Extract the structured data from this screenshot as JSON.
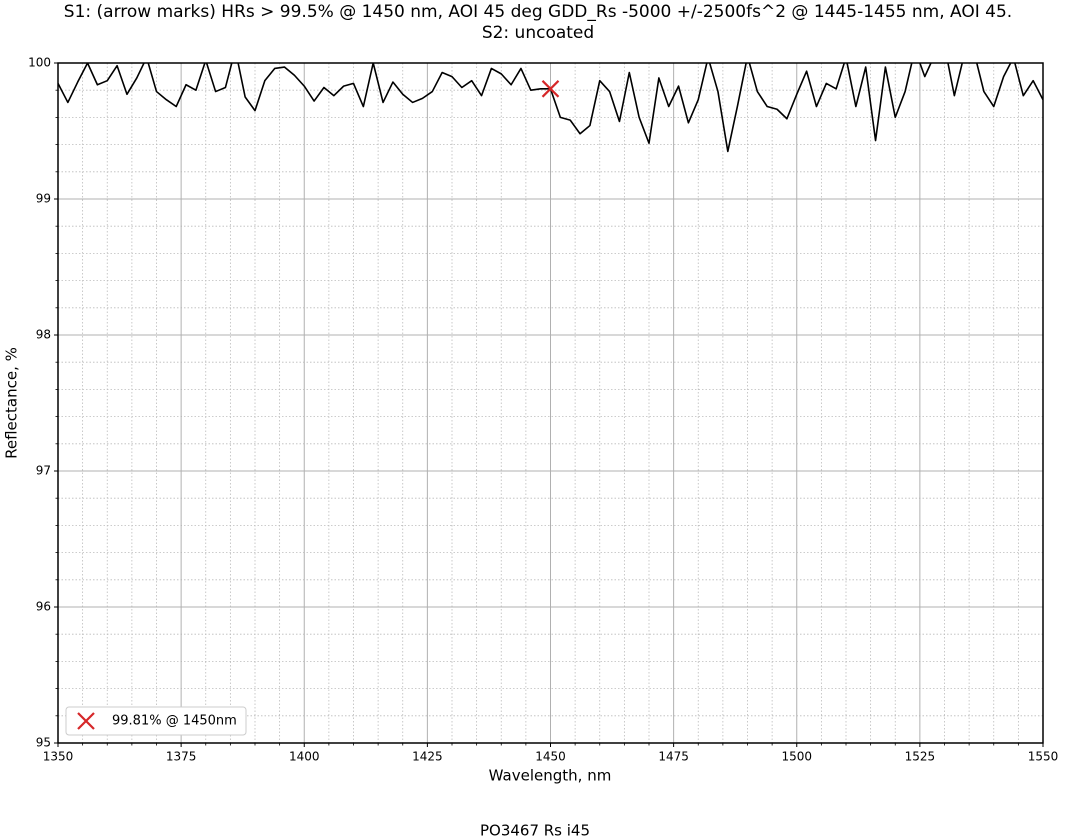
{
  "chart_data": {
    "type": "line",
    "title": "S1: (arrow marks) HRs > 99.5% @ 1450 nm, AOI 45 deg  GDD_Rs -5000 +/-2500fs^2 @ 1445-1455 nm, AOI 45.",
    "subtitle": "S2: uncoated",
    "xlabel": "Wavelength, nm",
    "ylabel": "Reflectance, %",
    "footer": "PO3467 Rs i45",
    "xlim": [
      1350,
      1550
    ],
    "ylim": [
      95,
      100
    ],
    "xticks": [
      1350,
      1375,
      1400,
      1425,
      1450,
      1475,
      1500,
      1525,
      1550
    ],
    "yticks": [
      95,
      96,
      97,
      98,
      99,
      100
    ],
    "xminor": [
      1355,
      1360,
      1365,
      1370,
      1380,
      1385,
      1390,
      1395,
      1405,
      1410,
      1415,
      1420,
      1430,
      1435,
      1440,
      1445,
      1455,
      1460,
      1465,
      1470,
      1480,
      1485,
      1490,
      1495,
      1505,
      1510,
      1515,
      1520,
      1530,
      1535,
      1540,
      1545
    ],
    "yminor": [
      95.2,
      95.4,
      95.6,
      95.8,
      96.2,
      96.4,
      96.6,
      96.8,
      97.2,
      97.4,
      97.6,
      97.8,
      98.2,
      98.4,
      98.6,
      98.8,
      99.2,
      99.4,
      99.6,
      99.8
    ],
    "grid": true,
    "x": [
      1350,
      1352,
      1354,
      1356,
      1358,
      1360,
      1362,
      1364,
      1366,
      1368,
      1370,
      1372,
      1374,
      1376,
      1378,
      1380,
      1382,
      1384,
      1386,
      1388,
      1390,
      1392,
      1394,
      1396,
      1398,
      1400,
      1402,
      1404,
      1406,
      1408,
      1410,
      1412,
      1414,
      1416,
      1418,
      1420,
      1422,
      1424,
      1426,
      1428,
      1430,
      1432,
      1434,
      1436,
      1438,
      1440,
      1442,
      1444,
      1446,
      1448,
      1450,
      1452,
      1454,
      1456,
      1458,
      1460,
      1462,
      1464,
      1466,
      1468,
      1470,
      1472,
      1474,
      1476,
      1478,
      1480,
      1482,
      1484,
      1486,
      1488,
      1490,
      1492,
      1494,
      1496,
      1498,
      1500,
      1502,
      1504,
      1506,
      1508,
      1510,
      1512,
      1514,
      1516,
      1518,
      1520,
      1522,
      1524,
      1526,
      1528,
      1530,
      1532,
      1534,
      1536,
      1538,
      1540,
      1542,
      1544,
      1546,
      1548,
      1550
    ],
    "series": [
      {
        "color": "#000000",
        "values": [
          99.85,
          99.71,
          99.86,
          100.0,
          99.84,
          99.87,
          99.98,
          99.77,
          99.89,
          100.04,
          99.79,
          99.73,
          99.68,
          99.84,
          99.8,
          100.02,
          99.79,
          99.82,
          100.1,
          99.75,
          99.65,
          99.87,
          99.96,
          99.97,
          99.91,
          99.83,
          99.72,
          99.82,
          99.76,
          99.83,
          99.85,
          99.68,
          100.0,
          99.71,
          99.86,
          99.77,
          99.71,
          99.74,
          99.79,
          99.93,
          99.9,
          99.82,
          99.87,
          99.76,
          99.96,
          99.92,
          99.84,
          99.96,
          99.8,
          99.81,
          99.81,
          99.6,
          99.58,
          99.48,
          99.54,
          99.87,
          99.79,
          99.57,
          99.93,
          99.6,
          99.41,
          99.89,
          99.68,
          99.83,
          99.56,
          99.73,
          100.04,
          99.79,
          99.35,
          99.69,
          100.05,
          99.79,
          99.68,
          99.66,
          99.59,
          99.77,
          99.94,
          99.68,
          99.85,
          99.81,
          100.04,
          99.68,
          99.97,
          99.43,
          99.97,
          99.6,
          99.79,
          100.1,
          99.9,
          100.06,
          100.13,
          99.76,
          100.06,
          100.08,
          99.79,
          99.68,
          99.9,
          100.04,
          99.76,
          99.87,
          99.73
        ]
      }
    ],
    "marker": {
      "name": "99.81% @ 1450nm",
      "x": 1450,
      "y": 99.81,
      "color": "#d62728"
    },
    "legend": "lower left"
  }
}
